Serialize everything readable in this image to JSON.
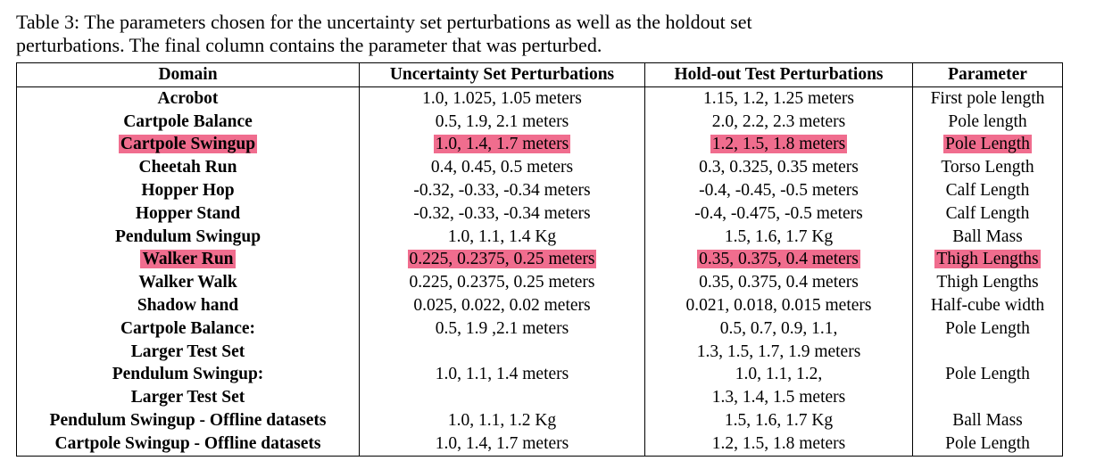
{
  "caption": {
    "line1": "Table 3: The parameters chosen for the uncertainty set perturbations as well as the holdout set",
    "line2": "perturbations. The final column contains the parameter that was perturbed."
  },
  "table": {
    "headers": [
      "Domain",
      "Uncertainty Set Perturbations",
      "Hold-out Test Perturbations",
      "Parameter"
    ],
    "rows": [
      {
        "domain": [
          "Acrobot"
        ],
        "uncertainty": [
          "1.0, 1.025, 1.05 meters"
        ],
        "holdout": [
          "1.15, 1.2, 1.25 meters"
        ],
        "parameter": [
          "First pole length"
        ],
        "highlight": false
      },
      {
        "domain": [
          "Cartpole Balance"
        ],
        "uncertainty": [
          "0.5, 1.9, 2.1 meters"
        ],
        "holdout": [
          "2.0, 2.2, 2.3 meters"
        ],
        "parameter": [
          "Pole length"
        ],
        "highlight": false
      },
      {
        "domain": [
          "Cartpole Swingup"
        ],
        "uncertainty": [
          "1.0, 1.4, 1.7 meters"
        ],
        "holdout": [
          "1.2, 1.5, 1.8 meters"
        ],
        "parameter": [
          "Pole Length"
        ],
        "highlight": true
      },
      {
        "domain": [
          "Cheetah Run"
        ],
        "uncertainty": [
          "0.4, 0.45, 0.5 meters"
        ],
        "holdout": [
          "0.3, 0.325, 0.35 meters"
        ],
        "parameter": [
          "Torso Length"
        ],
        "highlight": false
      },
      {
        "domain": [
          "Hopper Hop"
        ],
        "uncertainty": [
          "-0.32, -0.33, -0.34 meters"
        ],
        "holdout": [
          "-0.4, -0.45, -0.5 meters"
        ],
        "parameter": [
          "Calf Length"
        ],
        "highlight": false
      },
      {
        "domain": [
          "Hopper Stand"
        ],
        "uncertainty": [
          "-0.32, -0.33, -0.34 meters"
        ],
        "holdout": [
          "-0.4, -0.475, -0.5 meters"
        ],
        "parameter": [
          "Calf Length"
        ],
        "highlight": false
      },
      {
        "domain": [
          "Pendulum Swingup"
        ],
        "uncertainty": [
          "1.0, 1.1, 1.4 Kg"
        ],
        "holdout": [
          "1.5, 1.6, 1.7 Kg"
        ],
        "parameter": [
          "Ball Mass"
        ],
        "highlight": false
      },
      {
        "domain": [
          "Walker Run"
        ],
        "uncertainty": [
          "0.225, 0.2375, 0.25 meters"
        ],
        "holdout": [
          "0.35, 0.375, 0.4 meters"
        ],
        "parameter": [
          "Thigh Lengths"
        ],
        "highlight": true
      },
      {
        "domain": [
          "Walker Walk"
        ],
        "uncertainty": [
          "0.225, 0.2375, 0.25 meters"
        ],
        "holdout": [
          "0.35, 0.375, 0.4 meters"
        ],
        "parameter": [
          "Thigh Lengths"
        ],
        "highlight": false
      },
      {
        "domain": [
          "Shadow hand"
        ],
        "uncertainty": [
          "0.025, 0.022, 0.02 meters"
        ],
        "holdout": [
          "0.021, 0.018, 0.015 meters"
        ],
        "parameter": [
          "Half-cube width"
        ],
        "highlight": false
      },
      {
        "domain": [
          "Cartpole Balance:",
          "Larger Test Set"
        ],
        "uncertainty": [
          "0.5, 1.9 ,2.1 meters"
        ],
        "holdout": [
          "0.5, 0.7, 0.9, 1.1,",
          "1.3, 1.5, 1.7, 1.9 meters"
        ],
        "parameter": [
          "Pole Length"
        ],
        "highlight": false
      },
      {
        "domain": [
          "Pendulum Swingup:",
          "Larger Test Set"
        ],
        "uncertainty": [
          "1.0, 1.1, 1.4 meters"
        ],
        "holdout": [
          "1.0, 1.1, 1.2,",
          "1.3, 1.4, 1.5 meters"
        ],
        "parameter": [
          "Pole Length"
        ],
        "highlight": false
      },
      {
        "domain": [
          "Pendulum Swingup - Offline datasets"
        ],
        "uncertainty": [
          "1.0, 1.1, 1.2 Kg"
        ],
        "holdout": [
          "1.5, 1.6, 1.7 Kg"
        ],
        "parameter": [
          "Ball Mass"
        ],
        "highlight": false
      },
      {
        "domain": [
          "Cartpole Swingup - Offline datasets"
        ],
        "uncertainty": [
          "1.0, 1.4, 1.7 meters"
        ],
        "holdout": [
          "1.2, 1.5, 1.8 meters"
        ],
        "parameter": [
          "Pole Length"
        ],
        "highlight": false
      }
    ]
  },
  "colors": {
    "highlight": "#f06d8e"
  }
}
